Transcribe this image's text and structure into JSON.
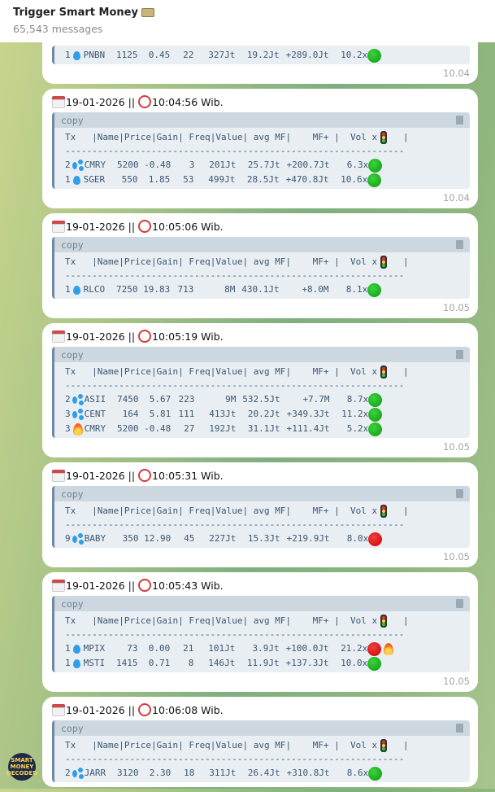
{
  "header": {
    "title": "Trigger Smart Money",
    "title_icon": "money-bag-icon",
    "subtitle": "65,543 messages"
  },
  "table_header": "Tx   |Name|Price|Gain| Freq|Value| avg MF|    MF+ |  Vol x",
  "table_header_end": "   |",
  "dashes": "---------------------------------------------------------------",
  "copy_label": "copy",
  "avatar_text": "SMART MONEY DECODED",
  "messages": [
    {
      "partial": true,
      "date": "",
      "clock": "",
      "rows": [
        {
          "tx": "1",
          "icon": "drop",
          "name": "PNBN",
          "price": "1125",
          "gain": "0.45",
          "freq": "22",
          "value": "327Jt",
          "avg": "19.2Jt",
          "mf": "+289.0Jt",
          "vol": "10.2x",
          "signal": "green"
        }
      ],
      "time": "10.04"
    },
    {
      "date": "19-01-2026 || ",
      "clock": "10:04:56 Wib.",
      "rows": [
        {
          "tx": "2",
          "icon": "splash",
          "name": "CMRY",
          "price": "5200",
          "gain": "-0.48",
          "freq": "3",
          "value": "201Jt",
          "avg": "25.7Jt",
          "mf": "+200.7Jt",
          "vol": "6.3x",
          "signal": "green"
        },
        {
          "tx": "1",
          "icon": "drop",
          "name": "SGER",
          "price": "550",
          "gain": "1.85",
          "freq": "53",
          "value": "499Jt",
          "avg": "28.5Jt",
          "mf": "+470.8Jt",
          "vol": "10.6x",
          "signal": "green"
        }
      ],
      "time": "10.04"
    },
    {
      "date": "19-01-2026 || ",
      "clock": "10:05:06 Wib.",
      "rows": [
        {
          "tx": "1",
          "icon": "drop",
          "name": "RLCO",
          "price": "7250",
          "gain": "19.83",
          "freq": "713",
          "value": "8M",
          "avg": "430.1Jt",
          "mf": "+8.0M",
          "vol": "8.1x",
          "signal": "green"
        }
      ],
      "time": "10.05"
    },
    {
      "date": "19-01-2026 || ",
      "clock": "10:05:19 Wib.",
      "rows": [
        {
          "tx": "2",
          "icon": "splash",
          "name": "ASII",
          "price": "7450",
          "gain": "5.67",
          "freq": "223",
          "value": "9M",
          "avg": "532.5Jt",
          "mf": "+7.7M",
          "vol": "8.7x",
          "signal": "green"
        },
        {
          "tx": "3",
          "icon": "splash",
          "name": "CENT",
          "price": "164",
          "gain": "5.81",
          "freq": "111",
          "value": "413Jt",
          "avg": "20.2Jt",
          "mf": "+349.3Jt",
          "vol": "11.2x",
          "signal": "green"
        },
        {
          "tx": "3",
          "icon": "fire",
          "name": "CMRY",
          "price": "5200",
          "gain": "-0.48",
          "freq": "27",
          "value": "192Jt",
          "avg": "31.1Jt",
          "mf": "+111.4Jt",
          "vol": "5.2x",
          "signal": "green"
        }
      ],
      "time": "10.05"
    },
    {
      "date": "19-01-2026 || ",
      "clock": "10:05:31 Wib.",
      "rows": [
        {
          "tx": "9",
          "icon": "splash",
          "name": "BABY",
          "price": "350",
          "gain": "12.90",
          "freq": "45",
          "value": "227Jt",
          "avg": "15.3Jt",
          "mf": "+219.9Jt",
          "vol": "8.0x",
          "signal": "red"
        }
      ],
      "time": "10.05"
    },
    {
      "date": "19-01-2026 || ",
      "clock": "10:05:43 Wib.",
      "rows": [
        {
          "tx": "1",
          "icon": "drop",
          "name": "MPIX",
          "price": "73",
          "gain": "0.00",
          "freq": "21",
          "value": "101Jt",
          "avg": "3.9Jt",
          "mf": "+100.0Jt",
          "vol": "21.2x",
          "signal": "red",
          "extra": "fire"
        },
        {
          "tx": "1",
          "icon": "drop",
          "name": "MSTI",
          "price": "1415",
          "gain": "0.71",
          "freq": "8",
          "value": "146Jt",
          "avg": "11.9Jt",
          "mf": "+137.3Jt",
          "vol": "10.0x",
          "signal": "green"
        }
      ],
      "time": "10.05"
    },
    {
      "date": "19-01-2026 || ",
      "clock": "10:06:08 Wib.",
      "rows": [
        {
          "tx": "2",
          "icon": "splash",
          "name": "JARR",
          "price": "3120",
          "gain": "2.30",
          "freq": "18",
          "value": "311Jt",
          "avg": "26.4Jt",
          "mf": "+310.8Jt",
          "vol": "8.6x",
          "signal": "green"
        }
      ],
      "time": ""
    }
  ]
}
